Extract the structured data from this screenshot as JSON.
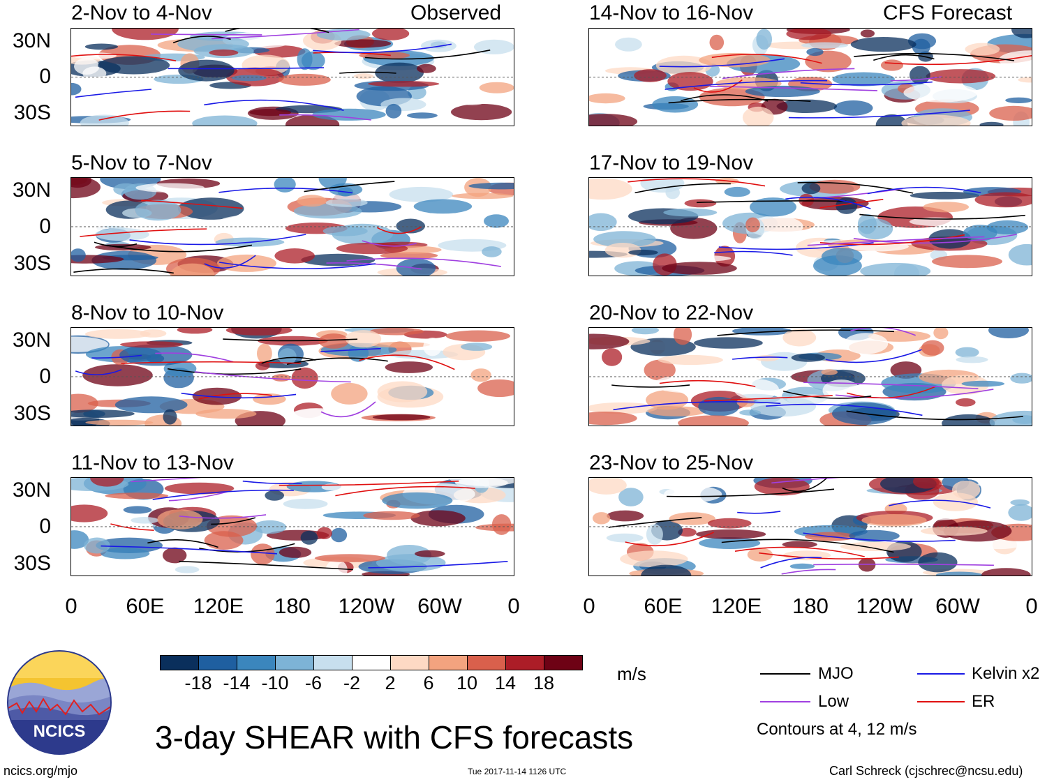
{
  "panels_left": [
    {
      "title": "2-Nov to 4-Nov",
      "tag": "Observed"
    },
    {
      "title": "5-Nov to 7-Nov",
      "tag": ""
    },
    {
      "title": "8-Nov to 10-Nov",
      "tag": ""
    },
    {
      "title": "11-Nov to 13-Nov",
      "tag": ""
    }
  ],
  "panels_right": [
    {
      "title": "14-Nov to 16-Nov",
      "tag": "CFS Forecast"
    },
    {
      "title": "17-Nov to 19-Nov",
      "tag": ""
    },
    {
      "title": "20-Nov to 22-Nov",
      "tag": ""
    },
    {
      "title": "23-Nov to 25-Nov",
      "tag": ""
    }
  ],
  "lat_labels": [
    "30N",
    "0",
    "30S"
  ],
  "lon_labels": [
    "0",
    "60E",
    "120E",
    "180",
    "120W",
    "60W",
    "0"
  ],
  "colorbar": {
    "colors": [
      "#0a2f5c",
      "#1f5fa0",
      "#3b86bd",
      "#7db3d6",
      "#c7dfee",
      "#ffffff",
      "#fdd9c4",
      "#f3a37f",
      "#d9604c",
      "#ac1d27",
      "#6e0215"
    ],
    "labels": [
      "-18",
      "-14",
      "-10",
      "-6",
      "-2",
      "2",
      "6",
      "10",
      "14",
      "18"
    ],
    "unit": "m/s"
  },
  "legend": {
    "items": [
      {
        "label": "MJO",
        "color": "#000000"
      },
      {
        "label": "Kelvin x2",
        "color": "#1919e6"
      },
      {
        "label": "Low",
        "color": "#a040e0"
      },
      {
        "label": "ER",
        "color": "#e01010"
      }
    ],
    "note": "Contours at 4, 12 m/s"
  },
  "logo": {
    "text": "NCICS"
  },
  "main_title": "3-day SHEAR with CFS forecasts",
  "footer": {
    "left": "ncics.org/mjo",
    "center": "Tue 2017-11-14 1126 UTC",
    "right": "Carl Schreck (cjschrec@ncsu.edu)"
  }
}
